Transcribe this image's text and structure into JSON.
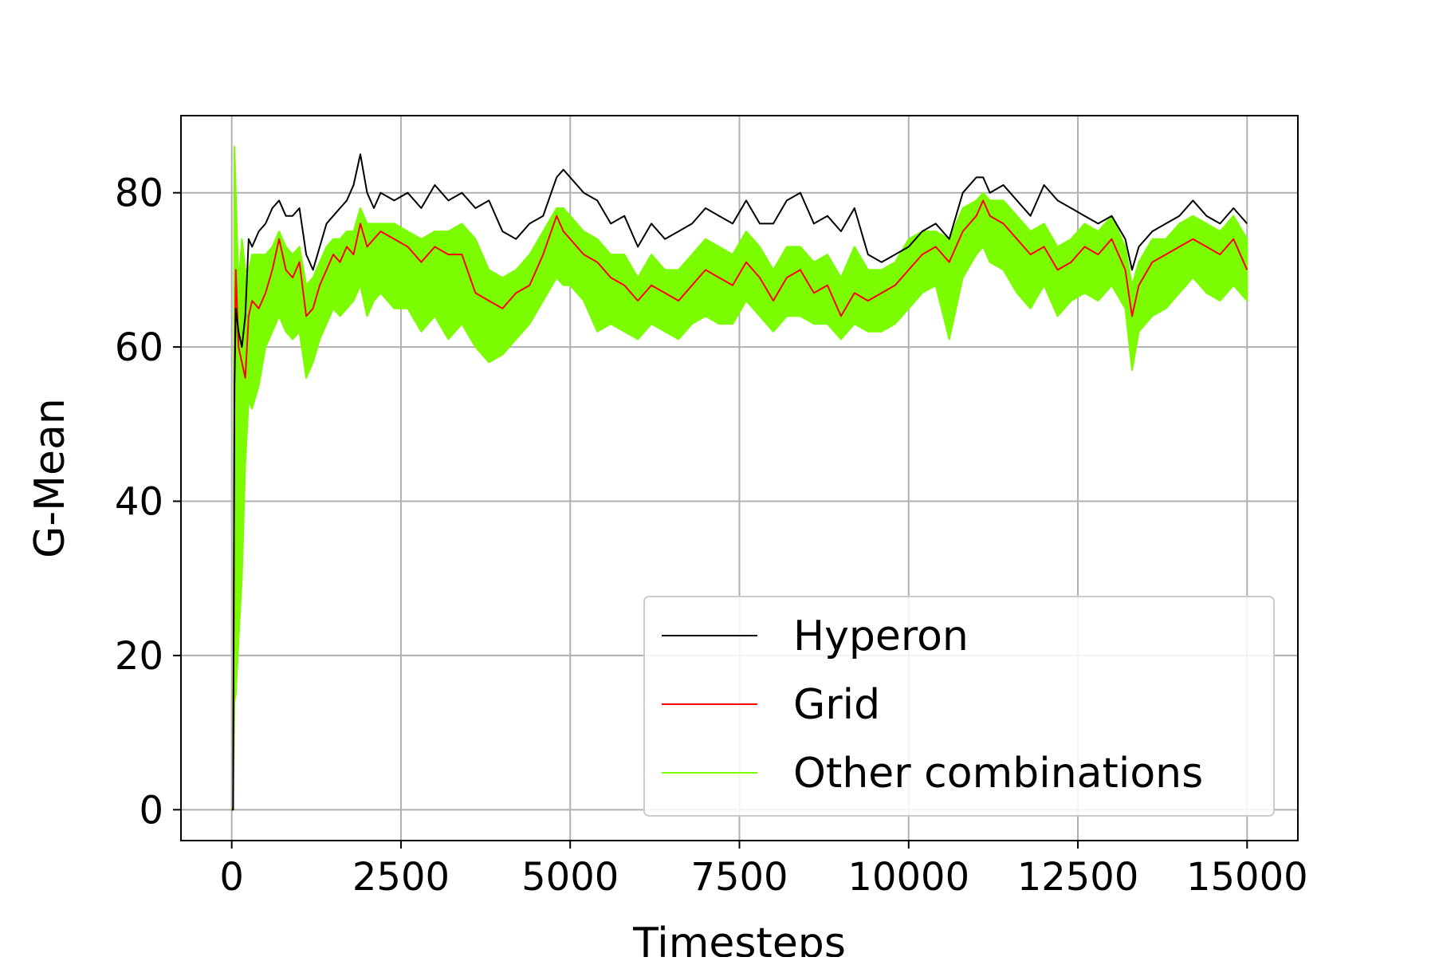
{
  "chart_data": {
    "type": "line",
    "title": "",
    "xlabel": "Timesteps",
    "ylabel": "G-Mean",
    "xlim": [
      -750,
      15750
    ],
    "ylim": [
      -4,
      90
    ],
    "xticks": [
      0,
      2500,
      5000,
      7500,
      10000,
      12500,
      15000
    ],
    "xtick_labels": [
      "0",
      "2500",
      "5000",
      "7500",
      "10000",
      "12500",
      "15000"
    ],
    "yticks": [
      0,
      20,
      40,
      60,
      80
    ],
    "ytick_labels": [
      "0",
      "20",
      "40",
      "60",
      "80"
    ],
    "grid": true,
    "legend": {
      "position": "lower-right",
      "entries": [
        "Hyperon",
        "Grid",
        "Other combinations"
      ]
    },
    "colors": {
      "Hyperon": "#000000",
      "Grid": "#ff0000",
      "Other combinations": "#7cfc00"
    },
    "series": [
      {
        "name": "Hyperon",
        "x": [
          0,
          20,
          40,
          60,
          100,
          150,
          200,
          250,
          300,
          400,
          500,
          600,
          700,
          800,
          900,
          1000,
          1100,
          1200,
          1300,
          1400,
          1500,
          1600,
          1700,
          1800,
          1900,
          2000,
          2100,
          2200,
          2400,
          2600,
          2800,
          3000,
          3200,
          3400,
          3600,
          3800,
          4000,
          4200,
          4400,
          4600,
          4800,
          4900,
          5000,
          5200,
          5400,
          5600,
          5800,
          6000,
          6200,
          6400,
          6600,
          6800,
          7000,
          7200,
          7400,
          7600,
          7800,
          8000,
          8200,
          8400,
          8600,
          8800,
          9000,
          9200,
          9400,
          9600,
          9800,
          10000,
          10200,
          10400,
          10600,
          10800,
          11000,
          11100,
          11200,
          11400,
          11600,
          11800,
          12000,
          12200,
          12400,
          12600,
          12800,
          13000,
          13200,
          13300,
          13400,
          13600,
          13800,
          14000,
          14200,
          14400,
          14600,
          14800,
          15000
        ],
        "y": [
          0,
          0,
          55,
          65,
          62,
          60,
          64,
          74,
          73,
          75,
          76,
          78,
          79,
          77,
          77,
          78,
          72,
          70,
          73,
          76,
          77,
          78,
          79,
          81,
          85,
          80,
          78,
          80,
          79,
          80,
          78,
          81,
          79,
          80,
          78,
          79,
          75,
          74,
          76,
          77,
          82,
          83,
          82,
          80,
          79,
          76,
          77,
          73,
          76,
          74,
          75,
          76,
          78,
          77,
          76,
          79,
          76,
          76,
          79,
          80,
          76,
          77,
          75,
          78,
          72,
          71,
          72,
          73,
          75,
          76,
          74,
          80,
          82,
          82,
          80,
          81,
          79,
          77,
          81,
          79,
          78,
          77,
          76,
          77,
          74,
          70,
          73,
          75,
          76,
          77,
          79,
          77,
          76,
          78,
          76
        ]
      },
      {
        "name": "Grid",
        "x": [
          0,
          20,
          40,
          60,
          100,
          150,
          200,
          250,
          300,
          400,
          500,
          600,
          700,
          800,
          900,
          1000,
          1100,
          1200,
          1300,
          1400,
          1500,
          1600,
          1700,
          1800,
          1900,
          2000,
          2100,
          2200,
          2400,
          2600,
          2800,
          3000,
          3200,
          3400,
          3600,
          3800,
          4000,
          4200,
          4400,
          4600,
          4800,
          4900,
          5000,
          5200,
          5400,
          5600,
          5800,
          6000,
          6200,
          6400,
          6600,
          6800,
          7000,
          7200,
          7400,
          7600,
          7800,
          8000,
          8200,
          8400,
          8600,
          8800,
          9000,
          9200,
          9400,
          9600,
          9800,
          10000,
          10200,
          10400,
          10600,
          10800,
          11000,
          11100,
          11200,
          11400,
          11600,
          11800,
          12000,
          12200,
          12400,
          12600,
          12800,
          13000,
          13200,
          13300,
          13400,
          13600,
          13800,
          14000,
          14200,
          14400,
          14600,
          14800,
          15000
        ],
        "y": [
          0,
          0,
          55,
          70,
          60,
          58,
          56,
          64,
          66,
          65,
          67,
          70,
          74,
          70,
          69,
          71,
          64,
          65,
          68,
          70,
          72,
          71,
          73,
          72,
          76,
          73,
          74,
          75,
          74,
          73,
          71,
          73,
          72,
          72,
          67,
          66,
          65,
          67,
          68,
          72,
          77,
          75,
          74,
          72,
          71,
          69,
          68,
          66,
          68,
          67,
          66,
          68,
          70,
          69,
          68,
          71,
          69,
          66,
          69,
          70,
          67,
          68,
          64,
          67,
          66,
          67,
          68,
          70,
          72,
          73,
          71,
          75,
          77,
          79,
          77,
          76,
          74,
          72,
          73,
          70,
          71,
          73,
          72,
          74,
          70,
          64,
          68,
          71,
          72,
          73,
          74,
          73,
          72,
          74,
          70
        ]
      },
      {
        "name": "Other combinations",
        "type": "band",
        "x": [
          0,
          20,
          40,
          60,
          100,
          150,
          200,
          250,
          300,
          400,
          500,
          600,
          700,
          800,
          900,
          1000,
          1100,
          1200,
          1300,
          1400,
          1500,
          1600,
          1700,
          1800,
          1900,
          2000,
          2100,
          2200,
          2400,
          2600,
          2800,
          3000,
          3200,
          3400,
          3600,
          3800,
          4000,
          4200,
          4400,
          4600,
          4800,
          4900,
          5000,
          5200,
          5400,
          5600,
          5800,
          6000,
          6200,
          6400,
          6600,
          6800,
          7000,
          7200,
          7400,
          7600,
          7800,
          8000,
          8200,
          8400,
          8600,
          8800,
          9000,
          9200,
          9400,
          9600,
          9800,
          10000,
          10200,
          10400,
          10600,
          10800,
          11000,
          11100,
          11200,
          11400,
          11600,
          11800,
          12000,
          12200,
          12400,
          12600,
          12800,
          13000,
          13200,
          13300,
          13400,
          13600,
          13800,
          14000,
          14200,
          14400,
          14600,
          14800,
          15000
        ],
        "upper": [
          0,
          0,
          86,
          80,
          68,
          74,
          70,
          70,
          72,
          72,
          72,
          73,
          75,
          73,
          72,
          73,
          68,
          69,
          71,
          73,
          74,
          74,
          75,
          75,
          78,
          76,
          76,
          76,
          76,
          75,
          74,
          75,
          75,
          76,
          74,
          70,
          69,
          70,
          72,
          75,
          78,
          78,
          77,
          75,
          74,
          72,
          72,
          69,
          72,
          70,
          70,
          72,
          74,
          73,
          72,
          75,
          73,
          70,
          73,
          73,
          71,
          72,
          69,
          73,
          70,
          70,
          71,
          74,
          75,
          75,
          74,
          78,
          79,
          80,
          79,
          79,
          77,
          75,
          76,
          73,
          74,
          76,
          75,
          77,
          73,
          68,
          71,
          74,
          74,
          76,
          77,
          76,
          75,
          77,
          74
        ],
        "lower": [
          0,
          0,
          14,
          15,
          22,
          30,
          45,
          53,
          52,
          55,
          60,
          62,
          64,
          62,
          61,
          62,
          56,
          58,
          61,
          63,
          65,
          64,
          65,
          66,
          68,
          64,
          66,
          67,
          65,
          65,
          62,
          64,
          61,
          63,
          60,
          58,
          59,
          61,
          63,
          66,
          69,
          68,
          68,
          66,
          62,
          63,
          62,
          61,
          63,
          62,
          61,
          63,
          64,
          63,
          63,
          66,
          64,
          62,
          64,
          64,
          63,
          63,
          61,
          63,
          62,
          62,
          63,
          65,
          67,
          68,
          61,
          69,
          72,
          73,
          71,
          70,
          67,
          65,
          68,
          64,
          66,
          67,
          66,
          68,
          65,
          57,
          62,
          64,
          65,
          67,
          69,
          67,
          66,
          68,
          66
        ]
      }
    ]
  }
}
